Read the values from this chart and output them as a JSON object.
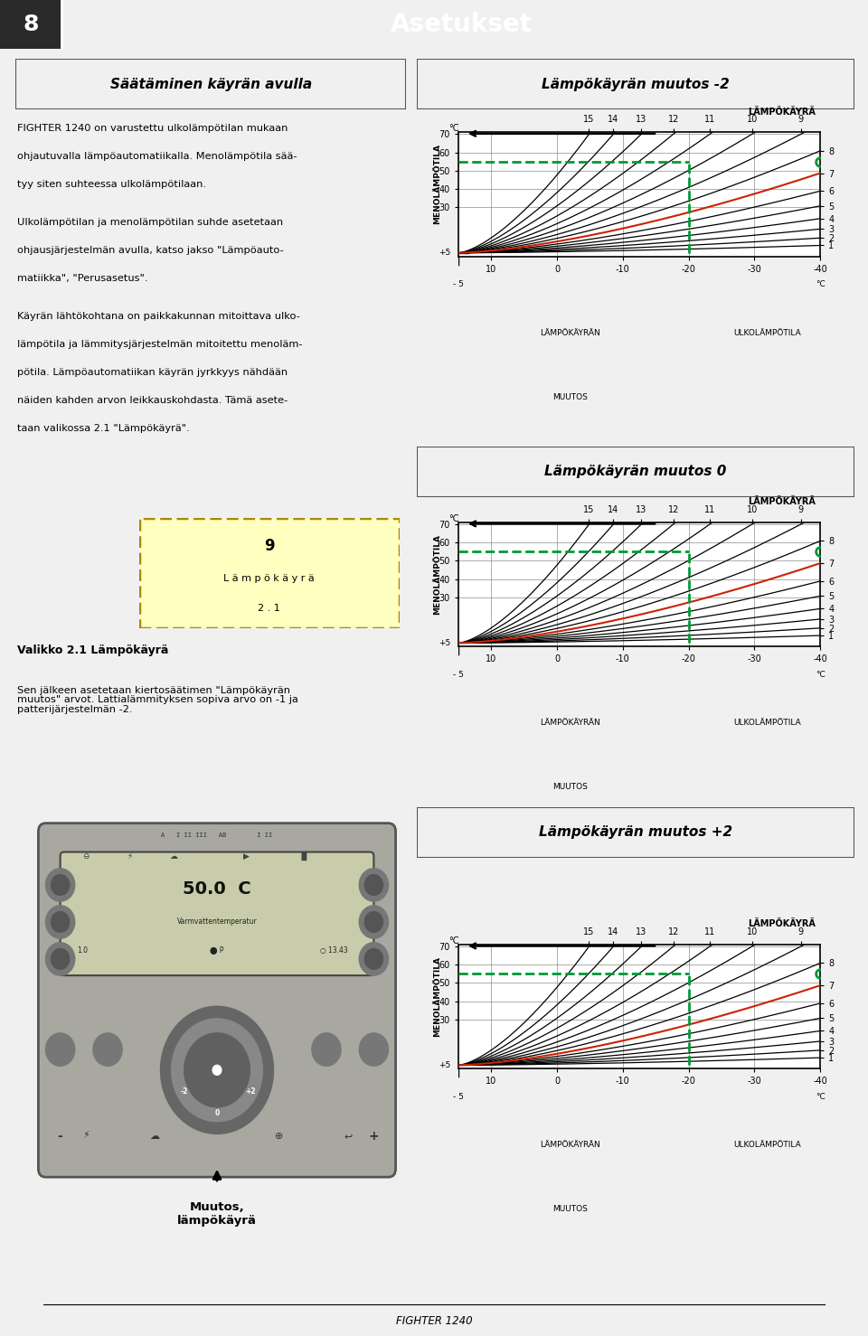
{
  "page_title": "Asetukset",
  "page_number": "8",
  "left_header": "Säätäminen käyrän avulla",
  "right_header1": "Lämpökäyrän muutos -2",
  "right_header2": "Lämpökäyrän muutos 0",
  "right_header3": "Lämpökäyrän muutos +2",
  "para1": "FIGHTER 1240 on varustettu ulkolämpötilan mukaan\nohjautuvalla lämpöautomatiikalla. Menolämpötila sää-\ntyy siten suhteessa ulkolämpötilaan.",
  "para2": "Ulkolämpötilan ja menolämpötilan suhde asetetaan\nohjausjärjestelmän avulla, katso jakso \"Lämpöauto-\nmatiikka\", \"Perusasetus\".",
  "para3": "Käyrän lähtökohtana on paikkakunnan mitoittava ulko-\nlämpötila ja lämmitysjärjestelmän mitoitettu menoläm-\npötila. Lämpöautomatiikan käyrän jyrkkyys nähdään\nnäiden kahden arvon leikkauskohdasta. Tämä asete-\ntaan valikossa 2.1 \"Lämpökäyrä\".",
  "box_line1": "9",
  "box_line2": "L ä m p ö k ä y r ä",
  "box_line3": "2 . 1",
  "valikko_label": "Valikko 2.1 Lämpökäyrä",
  "bottom_para": "Sen jälkeen asetetaan kiertosäätimen \"Lämpökäyrän\nmuutos\" arvot. Lattialämmityksen sopiva arvo on -1 ja\npatterijärjestelmän -2.",
  "muutos_label": "Muutos,\nlämpökäyrä",
  "footer_text": "FIGHTER 1240",
  "chart_ylabel": "MENOLÄMPÖTILA",
  "chart_xlabel_left": "LÄMPÖKÄYRÄN",
  "chart_xlabel_right_word": "MUUTOS",
  "chart_xright": "ULKOLÄMPÖTILA",
  "chart_top_label": "LÄMPÖKÄYRÄ",
  "green": "#009933",
  "red_curve": "#cc2200",
  "black": "#000000",
  "bg": "#f0f0f0",
  "header_bg": "#111111",
  "sh_bg": "#b0b0b0",
  "chart_border": "#333333",
  "origin_x": 15.0,
  "origin_y": 5.0,
  "x_max": 15.0,
  "x_min": -40.0,
  "y_max": 70.0,
  "y_min": 5.0,
  "highlight_cn": 7,
  "green_h_y": 55.0,
  "green_v_x": -20.0,
  "curve_params": [
    [
      1,
      0.01
    ],
    [
      2,
      0.02
    ],
    [
      3,
      0.032
    ],
    [
      4,
      0.046
    ],
    [
      5,
      0.063
    ],
    [
      6,
      0.083
    ],
    [
      7,
      0.107
    ],
    [
      8,
      0.137
    ],
    [
      9,
      0.173
    ],
    [
      10,
      0.218
    ],
    [
      11,
      0.275
    ],
    [
      12,
      0.348
    ],
    [
      13,
      0.443
    ],
    [
      14,
      0.568
    ],
    [
      15,
      0.734
    ]
  ],
  "device_lcd_bg": "#c8ccaa",
  "device_body_bg": "#a8a8a0",
  "device_dark": "#444444"
}
